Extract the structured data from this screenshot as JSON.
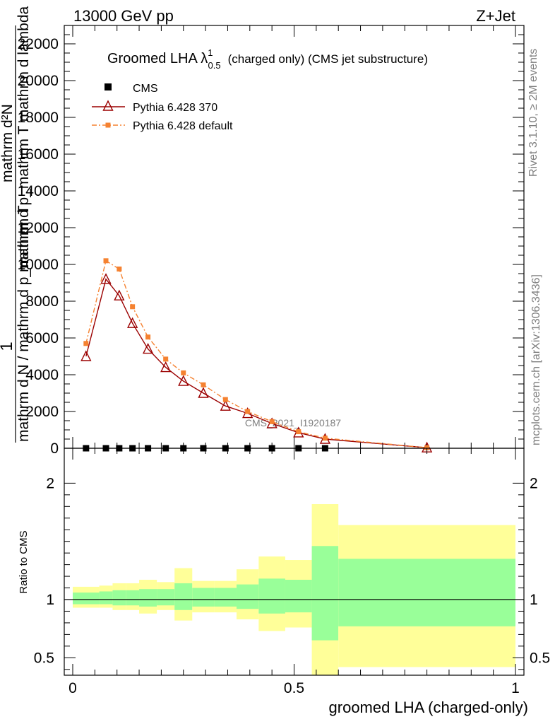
{
  "header": {
    "energy": "13000 GeV pp",
    "process": "Z+Jet"
  },
  "side_labels": {
    "rivet": "Rivet 3.1.10, ≥ 2M events",
    "mcplots": "mcplots.cern.ch [arXiv:1306.3436]"
  },
  "chart_data": [
    {
      "type": "line",
      "title": "Groomed LHA",
      "title_lambda": "λ",
      "title_sup": "1",
      "title_sub": "0.5",
      "title_suffix": "(charged only) (CMS jet substructure)",
      "ylabel_num": "1",
      "ylabel_den": "mathrm d N / mathrm d p_mathrm T",
      "ylabel_num2": "mathrm d²N",
      "ylabel_den2": "mathrm d p_mathrm T mathrm d lambda",
      "ylim": [
        0,
        23000
      ],
      "yticks": [
        0,
        2000,
        4000,
        6000,
        8000,
        10000,
        12000,
        14000,
        16000,
        18000,
        20000,
        22000
      ],
      "ytick_labels": [
        "0",
        "2000",
        "4000",
        "6000",
        "8000",
        "10000",
        "12000",
        "14000",
        "16000",
        "18000",
        "20000",
        "22000"
      ],
      "xlim": [
        0,
        1
      ],
      "watermark": "CMS_2021_I1920187",
      "legend": [
        "CMS",
        "Pythia 6.428 370",
        "Pythia 6.428 default"
      ],
      "series": [
        {
          "name": "CMS",
          "color": "#000000",
          "marker": "square",
          "x": [
            0.03,
            0.075,
            0.105,
            0.135,
            0.17,
            0.21,
            0.25,
            0.295,
            0.345,
            0.395,
            0.45,
            0.51,
            0.57
          ],
          "values": [
            0,
            0,
            0,
            0,
            0,
            0,
            0,
            0,
            0,
            0,
            0,
            0,
            0
          ]
        },
        {
          "name": "Pythia 6.428 370",
          "color": "#9b0000",
          "marker": "triangle",
          "x": [
            0.03,
            0.075,
            0.105,
            0.135,
            0.17,
            0.21,
            0.25,
            0.295,
            0.345,
            0.395,
            0.45,
            0.51,
            0.57,
            0.8
          ],
          "values": [
            5000,
            9200,
            8300,
            6800,
            5400,
            4400,
            3650,
            3000,
            2300,
            1900,
            1350,
            850,
            500,
            30
          ]
        },
        {
          "name": "Pythia 6.428 default",
          "color": "#f58231",
          "marker": "square-small",
          "x": [
            0.03,
            0.075,
            0.105,
            0.135,
            0.17,
            0.21,
            0.25,
            0.295,
            0.345,
            0.395,
            0.45,
            0.51,
            0.57,
            0.8
          ],
          "values": [
            5700,
            10200,
            9750,
            7700,
            6050,
            4850,
            4100,
            3450,
            2650,
            2000,
            1450,
            900,
            550,
            30
          ]
        }
      ]
    },
    {
      "type": "area",
      "ylabel": "Ratio to CMS",
      "ylim": [
        0.35,
        2.3
      ],
      "yticks": [
        0.5,
        1,
        2
      ],
      "ytick_labels": [
        "0.5",
        "1",
        "2"
      ],
      "xlim": [
        0,
        1
      ],
      "xticks": [
        0,
        0.5,
        1
      ],
      "xtick_labels": [
        "0",
        "0.5",
        "1"
      ],
      "xlabel": "groomed LHA (charged-only)",
      "bins": [
        {
          "lo": 0.0,
          "hi": 0.06,
          "green": [
            0.96,
            1.06
          ],
          "yellow": [
            0.93,
            1.11
          ]
        },
        {
          "lo": 0.06,
          "hi": 0.09,
          "green": [
            0.96,
            1.07
          ],
          "yellow": [
            0.93,
            1.12
          ]
        },
        {
          "lo": 0.09,
          "hi": 0.12,
          "green": [
            0.95,
            1.08
          ],
          "yellow": [
            0.91,
            1.14
          ]
        },
        {
          "lo": 0.12,
          "hi": 0.15,
          "green": [
            0.95,
            1.08
          ],
          "yellow": [
            0.91,
            1.14
          ]
        },
        {
          "lo": 0.15,
          "hi": 0.19,
          "green": [
            0.94,
            1.09
          ],
          "yellow": [
            0.88,
            1.17
          ]
        },
        {
          "lo": 0.19,
          "hi": 0.23,
          "green": [
            0.95,
            1.09
          ],
          "yellow": [
            0.91,
            1.15
          ]
        },
        {
          "lo": 0.23,
          "hi": 0.27,
          "green": [
            0.91,
            1.14
          ],
          "yellow": [
            0.82,
            1.27
          ]
        },
        {
          "lo": 0.27,
          "hi": 0.32,
          "green": [
            0.94,
            1.1
          ],
          "yellow": [
            0.89,
            1.16
          ]
        },
        {
          "lo": 0.32,
          "hi": 0.37,
          "green": [
            0.94,
            1.1
          ],
          "yellow": [
            0.89,
            1.16
          ]
        },
        {
          "lo": 0.37,
          "hi": 0.42,
          "green": [
            0.92,
            1.13
          ],
          "yellow": [
            0.83,
            1.26
          ]
        },
        {
          "lo": 0.42,
          "hi": 0.48,
          "green": [
            0.88,
            1.18
          ],
          "yellow": [
            0.73,
            1.37
          ]
        },
        {
          "lo": 0.48,
          "hi": 0.54,
          "green": [
            0.89,
            1.17
          ],
          "yellow": [
            0.76,
            1.34
          ]
        },
        {
          "lo": 0.54,
          "hi": 0.6,
          "green": [
            0.65,
            1.46
          ],
          "yellow": [
            0.35,
            1.82
          ]
        },
        {
          "lo": 0.6,
          "hi": 1.0,
          "green": [
            0.77,
            1.35
          ],
          "yellow": [
            0.42,
            1.64
          ]
        }
      ]
    }
  ]
}
